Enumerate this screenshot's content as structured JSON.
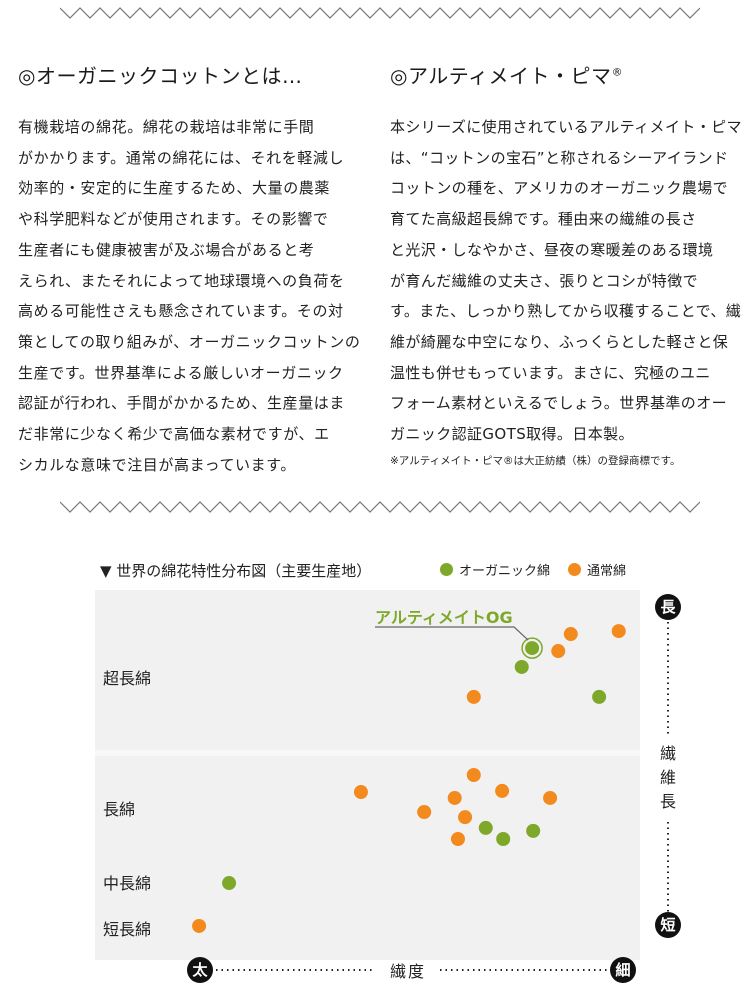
{
  "left": {
    "heading": "◎オーガニックコットンとは…",
    "lines": [
      "有機栽培の綿花。綿花の栽培は非常に手間",
      "がかかります。通常の綿花には、それを軽減し",
      "効率的・安定的に生産するため、大量の農薬",
      "や科学肥料などが使用されます。その影響で",
      "生産者にも健康被害が及ぶ場合があると考",
      "えられ、またそれによって地球環境への負荷を",
      "高める可能性さえも懸念されています。その対",
      "策としての取り組みが、オーガニックコットンの",
      "生産です。世界基準による厳しいオーガニック",
      "認証が行われ、手間がかかるため、生産量はま",
      "だ非常に少なく希少で高価な素材ですが、エ",
      "シカルな意味で注目が高まっています。"
    ]
  },
  "right": {
    "heading": "◎アルティメイト・ピマ",
    "heading_mark": "®",
    "lines": [
      "本シリーズに使用されているアルティメイト・ピマ",
      "は、“コットンの宝石”と称されるシーアイランド",
      "コットンの種を、アメリカのオーガニック農場で",
      "育てた高級超長綿です。種由来の繊維の長さ",
      "と光沢・しなやかさ、昼夜の寒暖差のある環境",
      "が育んだ繊維の丈夫さ、張りとコシが特徴で",
      "す。また、しっかり熟してから収穫することで、繊",
      "維が綺麗な中空になり、ふっくらとした軽さと保",
      "温性も併せもっています。まさに、究極のユニ",
      "フォーム素材といえるでしょう。世界基準のオー",
      "ガニック認証GOTS取得。日本製。"
    ],
    "note": "※アルティメイト・ピマ®は大正紡績（株）の登録商標です。"
  },
  "chart_data": {
    "type": "scatter",
    "title": "▼ 世界の綿花特性分布図（主要生産地）",
    "xlabel": "繊度",
    "x_min_label": "太",
    "x_max_label": "細",
    "ylabel": "繊維長",
    "y_max_label": "長",
    "y_min_label": "短",
    "xlim": [
      0,
      100
    ],
    "ylim": [
      0,
      100
    ],
    "grid": false,
    "legend_position": "top-right",
    "y_categories": [
      {
        "label": "超長綿",
        "y": 77
      },
      {
        "label": "長綿",
        "y": 41.6
      },
      {
        "label": "中長綿",
        "y": 21.6
      },
      {
        "label": "短長綿",
        "y": 9.2
      }
    ],
    "series": [
      {
        "name": "オーガニック綿",
        "color": "#7ea82a",
        "points": [
          [
            80.2,
            84.3
          ],
          [
            78.3,
            79.2
          ],
          [
            92.5,
            71.1
          ],
          [
            71.7,
            35.7
          ],
          [
            74.9,
            32.7
          ],
          [
            80.4,
            34.9
          ],
          [
            24.6,
            20.8
          ]
        ]
      },
      {
        "name": "通常綿",
        "color": "#f28a1e",
        "points": [
          [
            87.3,
            88.1
          ],
          [
            96.1,
            88.9
          ],
          [
            85,
            83.5
          ],
          [
            69.5,
            71.1
          ],
          [
            69.5,
            50
          ],
          [
            48.8,
            45.4
          ],
          [
            74.7,
            45.7
          ],
          [
            83.5,
            43.8
          ],
          [
            66,
            43.8
          ],
          [
            60.4,
            40
          ],
          [
            67.9,
            38.6
          ],
          [
            66.6,
            32.7
          ],
          [
            19.1,
            9.2
          ]
        ]
      }
    ],
    "annotation": {
      "text": "アルティメイトOG",
      "series": 0,
      "point_index": 0,
      "color": "#7ea82a"
    }
  }
}
